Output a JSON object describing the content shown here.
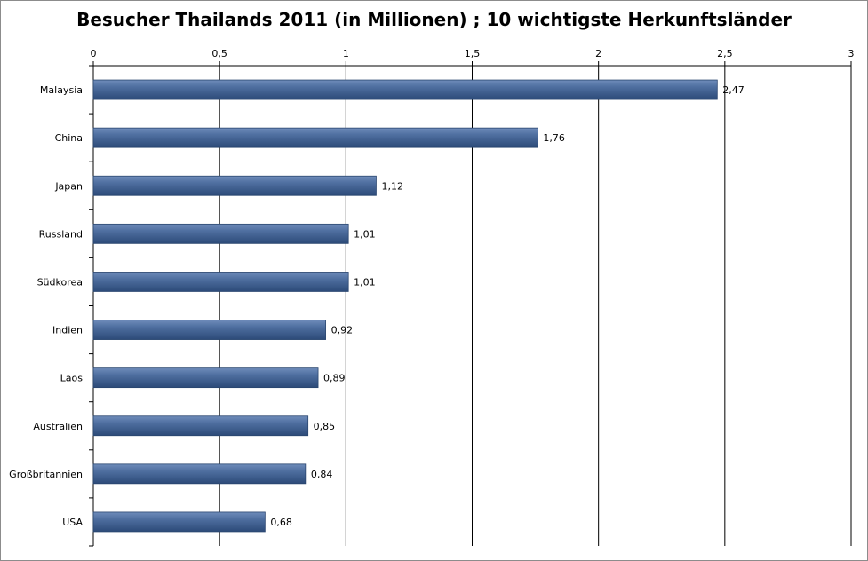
{
  "chart_data": {
    "type": "bar",
    "orientation": "horizontal",
    "title": "Besucher Thailands 2011 (in Millionen) ; 10 wichtigste Herkunftsländer",
    "xlabel": "",
    "ylabel": "",
    "xlim": [
      0,
      3
    ],
    "ticks": [
      {
        "value": 0,
        "label": "0"
      },
      {
        "value": 0.5,
        "label": "0,5"
      },
      {
        "value": 1,
        "label": "1"
      },
      {
        "value": 1.5,
        "label": "1,5"
      },
      {
        "value": 2,
        "label": "2"
      },
      {
        "value": 2.5,
        "label": "2,5"
      },
      {
        "value": 3,
        "label": "3"
      }
    ],
    "axis_position": "top",
    "grid": true,
    "legend": "none",
    "bar_color": "#4a6a9a",
    "categories": [
      "Malaysia",
      "China",
      "Japan",
      "Russland",
      "Südkorea",
      "Indien",
      "Laos",
      "Australien",
      "Großbritannien",
      "USA"
    ],
    "values": [
      2.47,
      1.76,
      1.12,
      1.01,
      1.01,
      0.92,
      0.89,
      0.85,
      0.84,
      0.68
    ],
    "value_labels": [
      "2,47",
      "1,76",
      "1,12",
      "1,01",
      "1,01",
      "0,92",
      "0,89",
      "0,85",
      "0,84",
      "0,68"
    ]
  }
}
